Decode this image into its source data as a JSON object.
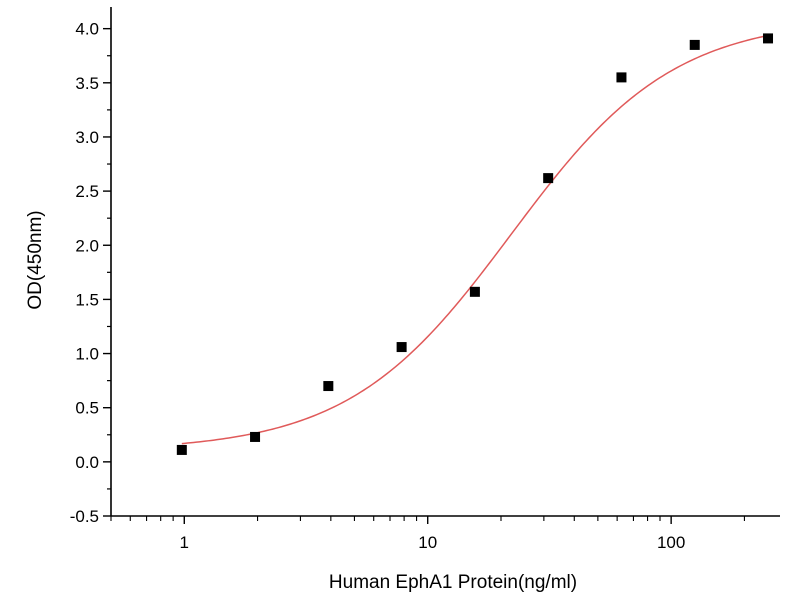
{
  "chart_data": {
    "type": "scatter",
    "title": "",
    "xlabel": "Human EphA1 Protein(ng/ml)",
    "ylabel": "OD(450nm)",
    "x_scale": "log",
    "xlim": [
      0.5,
      280
    ],
    "ylim": [
      -0.5,
      4.2
    ],
    "x_ticks": [
      {
        "value": 1,
        "label": "1"
      },
      {
        "value": 10,
        "label": "10"
      },
      {
        "value": 100,
        "label": "100"
      }
    ],
    "y_ticks": [
      {
        "value": -0.5,
        "label": "-0.5"
      },
      {
        "value": 0.0,
        "label": "0.0"
      },
      {
        "value": 0.5,
        "label": "0.5"
      },
      {
        "value": 1.0,
        "label": "1.0"
      },
      {
        "value": 1.5,
        "label": "1.5"
      },
      {
        "value": 2.0,
        "label": "2.0"
      },
      {
        "value": 2.5,
        "label": "2.5"
      },
      {
        "value": 3.0,
        "label": "3.0"
      },
      {
        "value": 3.5,
        "label": "3.5"
      },
      {
        "value": 4.0,
        "label": "4.0"
      }
    ],
    "grid": false,
    "legend": "none",
    "series": [
      {
        "kind": "points",
        "marker": "square",
        "color": "#000000",
        "x": [
          0.977,
          1.953,
          3.906,
          7.813,
          15.625,
          31.25,
          62.5,
          125,
          250
        ],
        "y": [
          0.11,
          0.23,
          0.7,
          1.06,
          1.57,
          2.62,
          3.55,
          3.85,
          3.91
        ]
      },
      {
        "kind": "fit",
        "model": "4PL",
        "color": "#e05a5a",
        "x_range": [
          0.977,
          250
        ],
        "parameters": {
          "bottom": 0.1,
          "top": 4.1,
          "ec50": 22.0,
          "hill": 1.3
        }
      }
    ]
  }
}
